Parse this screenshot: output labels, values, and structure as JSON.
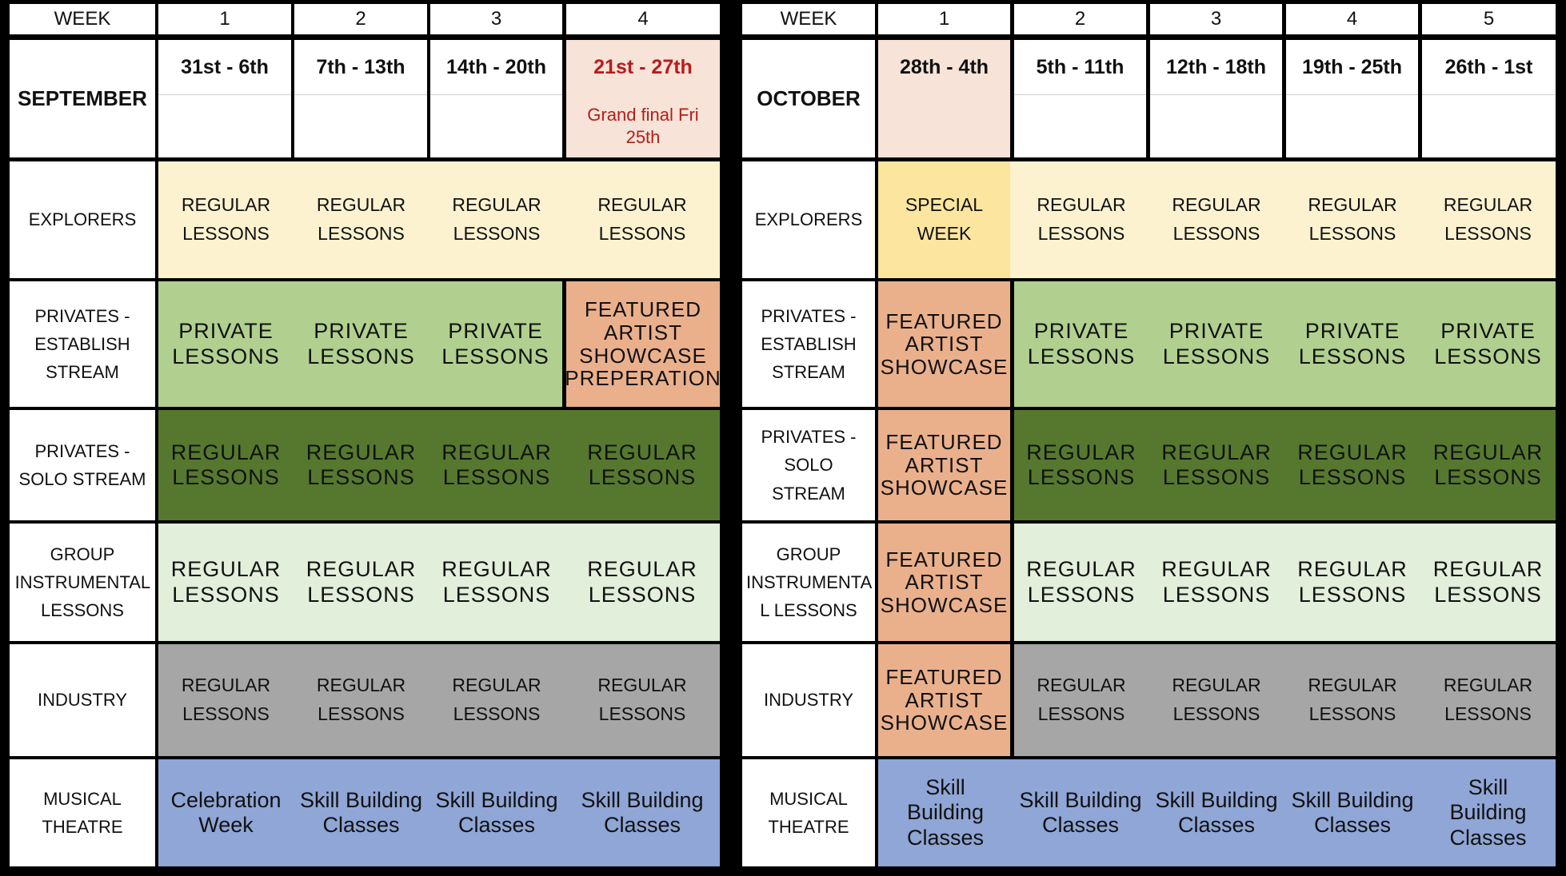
{
  "september": {
    "week_label": "WEEK",
    "month": "SEPTEMBER",
    "weeks": [
      "1",
      "2",
      "3",
      "4"
    ],
    "dates": [
      "31st - 6th",
      "7th - 13th",
      "14th - 20th",
      "21st - 27th"
    ],
    "note": "Grand final Fri 25th",
    "rows": [
      {
        "label": "EXPLORERS",
        "cells": [
          "REGULAR LESSONS",
          "REGULAR LESSONS",
          "REGULAR LESSONS",
          "REGULAR LESSONS"
        ]
      },
      {
        "label": "PRIVATES - ESTABLISH STREAM",
        "cells": [
          "PRIVATE LESSONS",
          "PRIVATE LESSONS",
          "PRIVATE LESSONS",
          "FEATURED ARTIST SHOWCASE PREPERATION"
        ]
      },
      {
        "label": "PRIVATES - SOLO STREAM",
        "cells": [
          "REGULAR LESSONS",
          "REGULAR LESSONS",
          "REGULAR LESSONS",
          "REGULAR LESSONS"
        ]
      },
      {
        "label": "GROUP INSTRUMENTAL LESSONS",
        "cells": [
          "REGULAR LESSONS",
          "REGULAR LESSONS",
          "REGULAR LESSONS",
          "REGULAR LESSONS"
        ]
      },
      {
        "label": "INDUSTRY",
        "cells": [
          "REGULAR LESSONS",
          "REGULAR LESSONS",
          "REGULAR LESSONS",
          "REGULAR LESSONS"
        ]
      },
      {
        "label": "MUSICAL THEATRE",
        "cells": [
          "Celebration Week",
          "Skill Building Classes",
          "Skill Building Classes",
          "Skill Building Classes"
        ]
      }
    ]
  },
  "october": {
    "week_label": "WEEK",
    "month": "OCTOBER",
    "weeks": [
      "1",
      "2",
      "3",
      "4",
      "5"
    ],
    "dates": [
      "28th - 4th",
      "5th - 11th",
      "12th - 18th",
      "19th - 25th",
      "26th - 1st"
    ],
    "rows": [
      {
        "label": "EXPLORERS",
        "cells": [
          "SPECIAL WEEK",
          "REGULAR LESSONS",
          "REGULAR LESSONS",
          "REGULAR LESSONS",
          "REGULAR LESSONS"
        ]
      },
      {
        "label": "PRIVATES - ESTABLISH STREAM",
        "cells": [
          "FEATURED ARTIST SHOWCASE",
          "PRIVATE LESSONS",
          "PRIVATE LESSONS",
          "PRIVATE LESSONS",
          "PRIVATE LESSONS"
        ]
      },
      {
        "label": "PRIVATES - SOLO STREAM",
        "cells": [
          "FEATURED ARTIST SHOWCASE",
          "REGULAR LESSONS",
          "REGULAR LESSONS",
          "REGULAR LESSONS",
          "REGULAR LESSONS"
        ]
      },
      {
        "label": "GROUP INSTRUMENTA L LESSONS",
        "cells": [
          "FEATURED ARTIST SHOWCASE",
          "REGULAR LESSONS",
          "REGULAR LESSONS",
          "REGULAR LESSONS",
          "REGULAR LESSONS"
        ]
      },
      {
        "label": "INDUSTRY",
        "cells": [
          "FEATURED ARTIST SHOWCASE",
          "REGULAR LESSONS",
          "REGULAR LESSONS",
          "REGULAR LESSONS",
          "REGULAR LESSONS"
        ]
      },
      {
        "label": "MUSICAL THEATRE",
        "cells": [
          "Skill Building Classes",
          "Skill Building Classes",
          "Skill Building Classes",
          "Skill Building Classes",
          "Skill Building Classes"
        ]
      }
    ]
  },
  "colors": {
    "explorers": "#fcf2d0",
    "special_week": "#fbe59f",
    "privates_establish": "#b1d08f",
    "privates_solo": "#56782e",
    "group_instrumental": "#e2efdb",
    "industry": "#a6a6a6",
    "musical_theatre": "#8fa6d6",
    "featured": "#eab08c",
    "highlight_date": "#f7e3d7",
    "grand_final_text": "#b71c1c"
  }
}
